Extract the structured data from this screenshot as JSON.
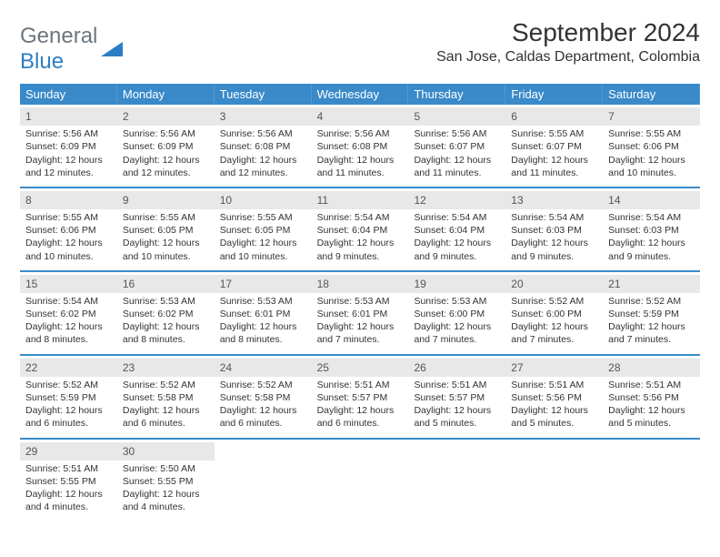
{
  "logo": {
    "line1": "General",
    "line2": "Blue"
  },
  "title": "September 2024",
  "location": "San Jose, Caldas Department, Colombia",
  "colors": {
    "header_bg": "#3a8ac9",
    "header_text": "#ffffff",
    "date_row_bg": "#e8e8e8",
    "week_border": "#3a8ac9",
    "body_text": "#333333",
    "logo_gray": "#6c757d",
    "logo_blue": "#2c7ec4",
    "page_bg": "#ffffff"
  },
  "type": "table",
  "day_headers": [
    "Sunday",
    "Monday",
    "Tuesday",
    "Wednesday",
    "Thursday",
    "Friday",
    "Saturday"
  ],
  "weeks": [
    [
      {
        "date": "1",
        "sunrise": "Sunrise: 5:56 AM",
        "sunset": "Sunset: 6:09 PM",
        "daylight": "Daylight: 12 hours and 12 minutes."
      },
      {
        "date": "2",
        "sunrise": "Sunrise: 5:56 AM",
        "sunset": "Sunset: 6:09 PM",
        "daylight": "Daylight: 12 hours and 12 minutes."
      },
      {
        "date": "3",
        "sunrise": "Sunrise: 5:56 AM",
        "sunset": "Sunset: 6:08 PM",
        "daylight": "Daylight: 12 hours and 12 minutes."
      },
      {
        "date": "4",
        "sunrise": "Sunrise: 5:56 AM",
        "sunset": "Sunset: 6:08 PM",
        "daylight": "Daylight: 12 hours and 11 minutes."
      },
      {
        "date": "5",
        "sunrise": "Sunrise: 5:56 AM",
        "sunset": "Sunset: 6:07 PM",
        "daylight": "Daylight: 12 hours and 11 minutes."
      },
      {
        "date": "6",
        "sunrise": "Sunrise: 5:55 AM",
        "sunset": "Sunset: 6:07 PM",
        "daylight": "Daylight: 12 hours and 11 minutes."
      },
      {
        "date": "7",
        "sunrise": "Sunrise: 5:55 AM",
        "sunset": "Sunset: 6:06 PM",
        "daylight": "Daylight: 12 hours and 10 minutes."
      }
    ],
    [
      {
        "date": "8",
        "sunrise": "Sunrise: 5:55 AM",
        "sunset": "Sunset: 6:06 PM",
        "daylight": "Daylight: 12 hours and 10 minutes."
      },
      {
        "date": "9",
        "sunrise": "Sunrise: 5:55 AM",
        "sunset": "Sunset: 6:05 PM",
        "daylight": "Daylight: 12 hours and 10 minutes."
      },
      {
        "date": "10",
        "sunrise": "Sunrise: 5:55 AM",
        "sunset": "Sunset: 6:05 PM",
        "daylight": "Daylight: 12 hours and 10 minutes."
      },
      {
        "date": "11",
        "sunrise": "Sunrise: 5:54 AM",
        "sunset": "Sunset: 6:04 PM",
        "daylight": "Daylight: 12 hours and 9 minutes."
      },
      {
        "date": "12",
        "sunrise": "Sunrise: 5:54 AM",
        "sunset": "Sunset: 6:04 PM",
        "daylight": "Daylight: 12 hours and 9 minutes."
      },
      {
        "date": "13",
        "sunrise": "Sunrise: 5:54 AM",
        "sunset": "Sunset: 6:03 PM",
        "daylight": "Daylight: 12 hours and 9 minutes."
      },
      {
        "date": "14",
        "sunrise": "Sunrise: 5:54 AM",
        "sunset": "Sunset: 6:03 PM",
        "daylight": "Daylight: 12 hours and 9 minutes."
      }
    ],
    [
      {
        "date": "15",
        "sunrise": "Sunrise: 5:54 AM",
        "sunset": "Sunset: 6:02 PM",
        "daylight": "Daylight: 12 hours and 8 minutes."
      },
      {
        "date": "16",
        "sunrise": "Sunrise: 5:53 AM",
        "sunset": "Sunset: 6:02 PM",
        "daylight": "Daylight: 12 hours and 8 minutes."
      },
      {
        "date": "17",
        "sunrise": "Sunrise: 5:53 AM",
        "sunset": "Sunset: 6:01 PM",
        "daylight": "Daylight: 12 hours and 8 minutes."
      },
      {
        "date": "18",
        "sunrise": "Sunrise: 5:53 AM",
        "sunset": "Sunset: 6:01 PM",
        "daylight": "Daylight: 12 hours and 7 minutes."
      },
      {
        "date": "19",
        "sunrise": "Sunrise: 5:53 AM",
        "sunset": "Sunset: 6:00 PM",
        "daylight": "Daylight: 12 hours and 7 minutes."
      },
      {
        "date": "20",
        "sunrise": "Sunrise: 5:52 AM",
        "sunset": "Sunset: 6:00 PM",
        "daylight": "Daylight: 12 hours and 7 minutes."
      },
      {
        "date": "21",
        "sunrise": "Sunrise: 5:52 AM",
        "sunset": "Sunset: 5:59 PM",
        "daylight": "Daylight: 12 hours and 7 minutes."
      }
    ],
    [
      {
        "date": "22",
        "sunrise": "Sunrise: 5:52 AM",
        "sunset": "Sunset: 5:59 PM",
        "daylight": "Daylight: 12 hours and 6 minutes."
      },
      {
        "date": "23",
        "sunrise": "Sunrise: 5:52 AM",
        "sunset": "Sunset: 5:58 PM",
        "daylight": "Daylight: 12 hours and 6 minutes."
      },
      {
        "date": "24",
        "sunrise": "Sunrise: 5:52 AM",
        "sunset": "Sunset: 5:58 PM",
        "daylight": "Daylight: 12 hours and 6 minutes."
      },
      {
        "date": "25",
        "sunrise": "Sunrise: 5:51 AM",
        "sunset": "Sunset: 5:57 PM",
        "daylight": "Daylight: 12 hours and 6 minutes."
      },
      {
        "date": "26",
        "sunrise": "Sunrise: 5:51 AM",
        "sunset": "Sunset: 5:57 PM",
        "daylight": "Daylight: 12 hours and 5 minutes."
      },
      {
        "date": "27",
        "sunrise": "Sunrise: 5:51 AM",
        "sunset": "Sunset: 5:56 PM",
        "daylight": "Daylight: 12 hours and 5 minutes."
      },
      {
        "date": "28",
        "sunrise": "Sunrise: 5:51 AM",
        "sunset": "Sunset: 5:56 PM",
        "daylight": "Daylight: 12 hours and 5 minutes."
      }
    ],
    [
      {
        "date": "29",
        "sunrise": "Sunrise: 5:51 AM",
        "sunset": "Sunset: 5:55 PM",
        "daylight": "Daylight: 12 hours and 4 minutes."
      },
      {
        "date": "30",
        "sunrise": "Sunrise: 5:50 AM",
        "sunset": "Sunset: 5:55 PM",
        "daylight": "Daylight: 12 hours and 4 minutes."
      },
      {
        "empty": true
      },
      {
        "empty": true
      },
      {
        "empty": true
      },
      {
        "empty": true
      },
      {
        "empty": true
      }
    ]
  ]
}
